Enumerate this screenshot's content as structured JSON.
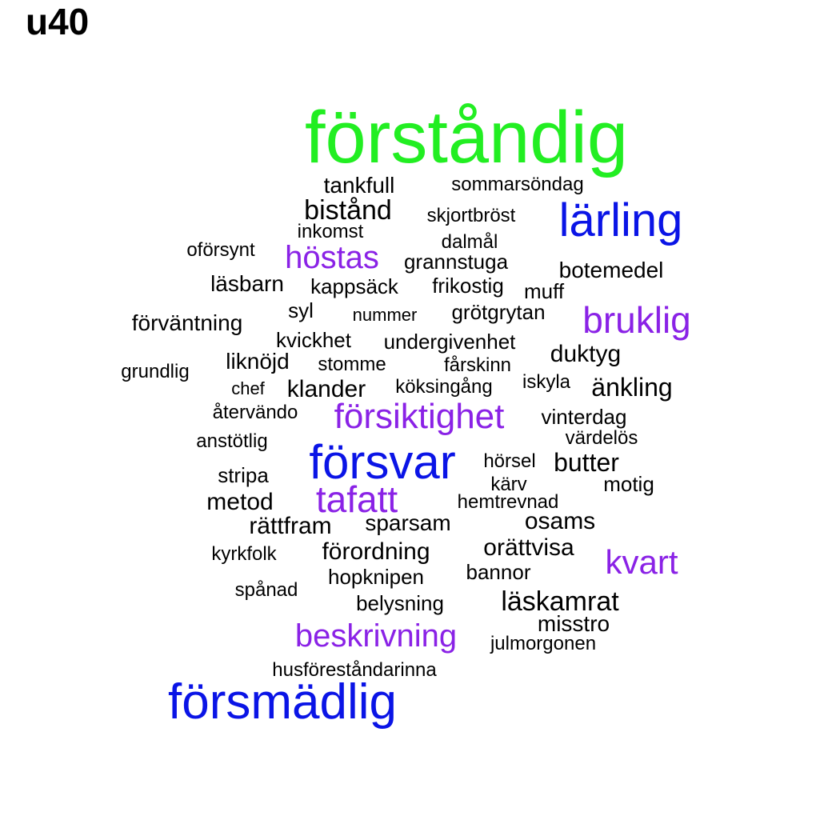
{
  "title": "u40",
  "colors": {
    "green": "#22ee22",
    "blue": "#0a14e6",
    "purple": "#8a22e6",
    "black": "#000000"
  },
  "words": [
    {
      "text": "förståndig",
      "color": "green"
    },
    {
      "text": "lärling",
      "color": "blue"
    },
    {
      "text": "försvar",
      "color": "blue"
    },
    {
      "text": "försmädlig",
      "color": "blue"
    },
    {
      "text": "höstas",
      "color": "purple"
    },
    {
      "text": "bruklig",
      "color": "purple"
    },
    {
      "text": "försiktighet",
      "color": "purple"
    },
    {
      "text": "tafatt",
      "color": "purple"
    },
    {
      "text": "kvart",
      "color": "purple"
    },
    {
      "text": "beskrivning",
      "color": "purple"
    },
    {
      "text": "tankfull",
      "color": "black"
    },
    {
      "text": "sommarsöndag",
      "color": "black"
    },
    {
      "text": "bistånd",
      "color": "black"
    },
    {
      "text": "skjortbröst",
      "color": "black"
    },
    {
      "text": "inkomst",
      "color": "black"
    },
    {
      "text": "dalmål",
      "color": "black"
    },
    {
      "text": "oförsynt",
      "color": "black"
    },
    {
      "text": "grannstuga",
      "color": "black"
    },
    {
      "text": "botemedel",
      "color": "black"
    },
    {
      "text": "läsbarn",
      "color": "black"
    },
    {
      "text": "kappsäck",
      "color": "black"
    },
    {
      "text": "frikostig",
      "color": "black"
    },
    {
      "text": "muff",
      "color": "black"
    },
    {
      "text": "syl",
      "color": "black"
    },
    {
      "text": "nummer",
      "color": "black"
    },
    {
      "text": "grötgrytan",
      "color": "black"
    },
    {
      "text": "förväntning",
      "color": "black"
    },
    {
      "text": "kvickhet",
      "color": "black"
    },
    {
      "text": "undergivenhet",
      "color": "black"
    },
    {
      "text": "duktyg",
      "color": "black"
    },
    {
      "text": "liknöjd",
      "color": "black"
    },
    {
      "text": "stomme",
      "color": "black"
    },
    {
      "text": "fårskinn",
      "color": "black"
    },
    {
      "text": "grundlig",
      "color": "black"
    },
    {
      "text": "iskyla",
      "color": "black"
    },
    {
      "text": "chef",
      "color": "black"
    },
    {
      "text": "klander",
      "color": "black"
    },
    {
      "text": "köksingång",
      "color": "black"
    },
    {
      "text": "änkling",
      "color": "black"
    },
    {
      "text": "återvändo",
      "color": "black"
    },
    {
      "text": "vinterdag",
      "color": "black"
    },
    {
      "text": "anstötlig",
      "color": "black"
    },
    {
      "text": "värdelös",
      "color": "black"
    },
    {
      "text": "hörsel",
      "color": "black"
    },
    {
      "text": "butter",
      "color": "black"
    },
    {
      "text": "stripa",
      "color": "black"
    },
    {
      "text": "kärv",
      "color": "black"
    },
    {
      "text": "motig",
      "color": "black"
    },
    {
      "text": "metod",
      "color": "black"
    },
    {
      "text": "hemtrevnad",
      "color": "black"
    },
    {
      "text": "rättfram",
      "color": "black"
    },
    {
      "text": "sparsam",
      "color": "black"
    },
    {
      "text": "osams",
      "color": "black"
    },
    {
      "text": "förordning",
      "color": "black"
    },
    {
      "text": "orättvisa",
      "color": "black"
    },
    {
      "text": "kyrkfolk",
      "color": "black"
    },
    {
      "text": "bannor",
      "color": "black"
    },
    {
      "text": "hopknipen",
      "color": "black"
    },
    {
      "text": "spånad",
      "color": "black"
    },
    {
      "text": "belysning",
      "color": "black"
    },
    {
      "text": "läskamrat",
      "color": "black"
    },
    {
      "text": "misstro",
      "color": "black"
    },
    {
      "text": "julmorgonen",
      "color": "black"
    },
    {
      "text": "husföreståndarinna",
      "color": "black"
    }
  ]
}
